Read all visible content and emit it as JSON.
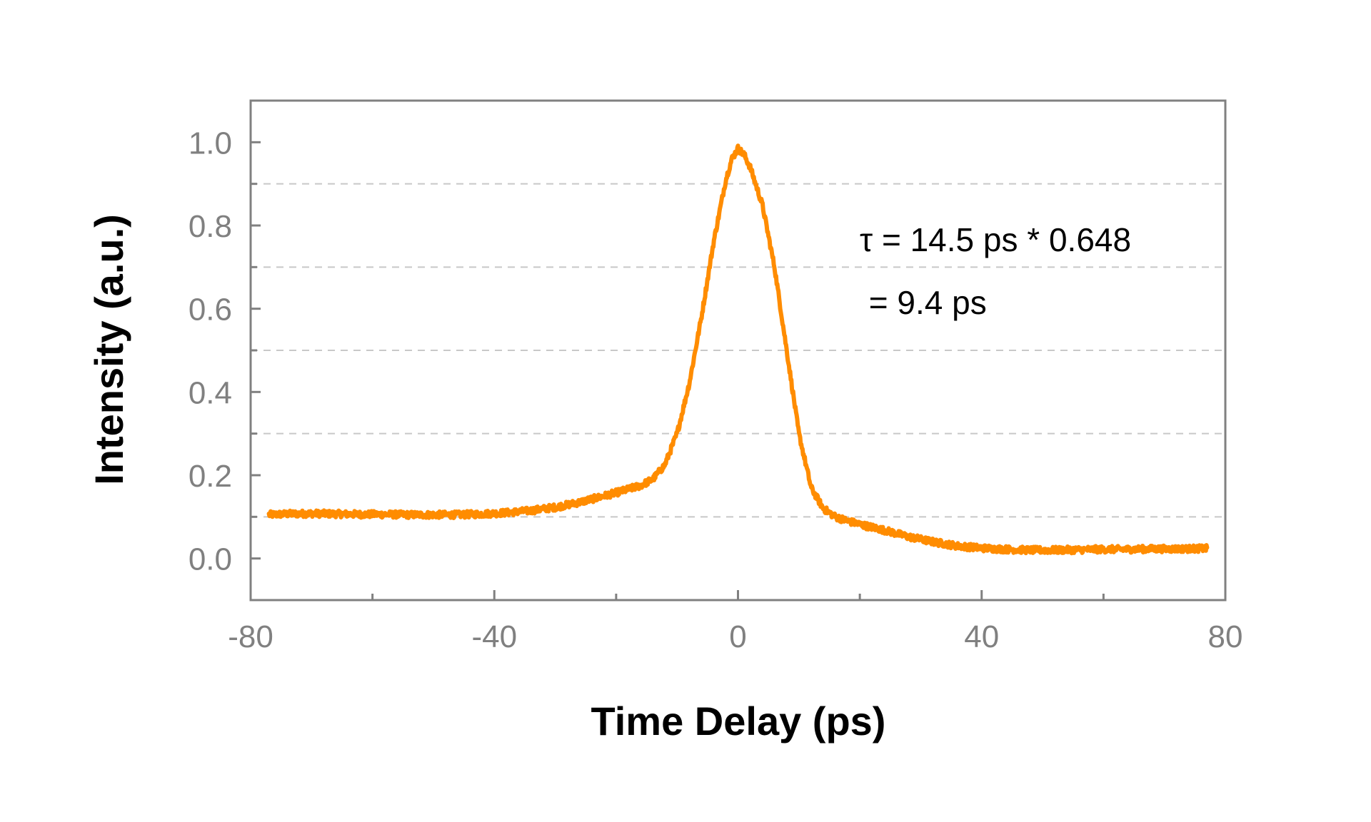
{
  "chart_data": {
    "type": "line",
    "title": "",
    "xlabel": "Time Delay (ps)",
    "ylabel": "Intensity (a.u.)",
    "xlim": [
      -80,
      80
    ],
    "ylim": [
      -0.1,
      1.1
    ],
    "x_ticks": [
      -80,
      -40,
      0,
      40,
      80
    ],
    "x_tick_labels": [
      "-80",
      "-40",
      "0",
      "40",
      "80"
    ],
    "x_minor_ticks": [
      -60,
      -20,
      20,
      60
    ],
    "y_ticks": [
      0.0,
      0.2,
      0.4,
      0.6,
      0.8,
      1.0
    ],
    "y_tick_labels": [
      "0.0",
      "0.2",
      "0.4",
      "0.6",
      "0.8",
      "1.0"
    ],
    "y_minor_ticks": [
      0.1,
      0.3,
      0.5,
      0.7,
      0.9
    ],
    "grid": {
      "major": false,
      "minor_y": true,
      "style": "dashed"
    },
    "legend": "none",
    "annotations": [
      "τ = 14.5 ps * 0.648",
      " = 9.4 ps"
    ],
    "colors": {
      "series": "#ff8c00",
      "axis": "#808080",
      "grid": "#c8c8c8"
    },
    "series": [
      {
        "x": [
          -77,
          -74,
          -70,
          -66,
          -62,
          -58,
          -54,
          -50,
          -46,
          -42,
          -38,
          -34,
          -30,
          -26,
          -22,
          -19,
          -16,
          -14,
          -12,
          -10,
          -8,
          -6,
          -4,
          -2,
          -1,
          0,
          1,
          2,
          4,
          6,
          8,
          10,
          12,
          14,
          16,
          18,
          20,
          24,
          28,
          32,
          36,
          40,
          44,
          48,
          52,
          56,
          60,
          64,
          68,
          72,
          77
        ],
        "y": [
          0.105,
          0.107,
          0.108,
          0.107,
          0.106,
          0.106,
          0.105,
          0.105,
          0.105,
          0.107,
          0.11,
          0.115,
          0.123,
          0.135,
          0.15,
          0.162,
          0.175,
          0.19,
          0.225,
          0.3,
          0.42,
          0.58,
          0.76,
          0.91,
          0.96,
          0.985,
          0.97,
          0.94,
          0.85,
          0.7,
          0.5,
          0.3,
          0.17,
          0.12,
          0.1,
          0.09,
          0.082,
          0.068,
          0.052,
          0.04,
          0.03,
          0.025,
          0.022,
          0.02,
          0.02,
          0.021,
          0.022,
          0.022,
          0.023,
          0.023,
          0.024
        ]
      }
    ]
  }
}
